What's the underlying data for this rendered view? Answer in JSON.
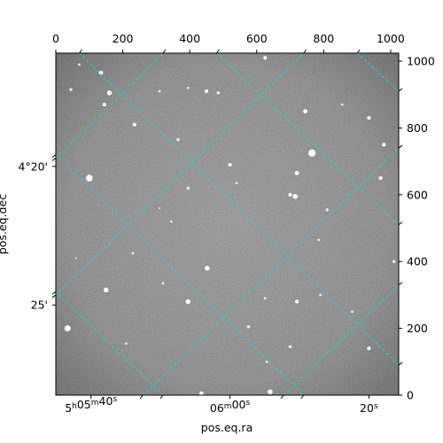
{
  "chart_data": {
    "type": "image",
    "xlabel": "pos.eq.ra",
    "ylabel": "pos.eq.dec",
    "pixel_axes": {
      "xlim": [
        0,
        1024
      ],
      "ylim": [
        0,
        1024
      ],
      "x_ticks": [
        0,
        200,
        400,
        600,
        800,
        1000
      ],
      "y_ticks": [
        0,
        200,
        400,
        600,
        800,
        1000
      ],
      "x_tick_labels": [
        "0",
        "200",
        "400",
        "600",
        "800",
        "1000"
      ],
      "y_tick_labels": [
        "0",
        "200",
        "400",
        "600",
        "800",
        "1000"
      ]
    },
    "world_ticks": {
      "ra": [
        {
          "label": "5h05m40s",
          "x": 105
        },
        {
          "label": "06m00s",
          "x": 520
        },
        {
          "label": "20s",
          "x": 935
        }
      ],
      "dec": [
        {
          "label": "4°20'",
          "y": 685
        },
        {
          "label": "25'",
          "y": 270
        }
      ]
    },
    "grid": true,
    "grid_color": "#22d3d3",
    "grid_lines": [
      {
        "from": [
          70,
          1024
        ],
        "to": [
          1024,
          90
        ]
      },
      {
        "from": [
          0,
          710
        ],
        "to": [
          320,
          1024
        ]
      },
      {
        "from": [
          0,
          300
        ],
        "to": [
          740,
          1024
        ]
      },
      {
        "from": [
          260,
          0
        ],
        "to": [
          1024,
          740
        ]
      },
      {
        "from": [
          680,
          0
        ],
        "to": [
          1024,
          330
        ]
      },
      {
        "from": [
          0,
          310
        ],
        "to": [
          320,
          0
        ]
      },
      {
        "from": [
          0,
          720
        ],
        "to": [
          740,
          0
        ]
      },
      {
        "from": [
          480,
          1024
        ],
        "to": [
          1024,
          510
        ]
      },
      {
        "from": [
          900,
          1024
        ],
        "to": [
          1024,
          910
        ]
      }
    ],
    "stars": [
      {
        "x": 100,
        "y": 650,
        "r": 11
      },
      {
        "x": 160,
        "y": 905,
        "r": 8
      },
      {
        "x": 145,
        "y": 870,
        "r": 6
      },
      {
        "x": 235,
        "y": 810,
        "r": 6
      },
      {
        "x": 150,
        "y": 315,
        "r": 8
      },
      {
        "x": 35,
        "y": 200,
        "r": 10
      },
      {
        "x": 135,
        "y": 965,
        "r": 7
      },
      {
        "x": 45,
        "y": 915,
        "r": 5
      },
      {
        "x": 395,
        "y": 620,
        "r": 5
      },
      {
        "x": 365,
        "y": 765,
        "r": 5
      },
      {
        "x": 450,
        "y": 910,
        "r": 6
      },
      {
        "x": 520,
        "y": 690,
        "r": 6
      },
      {
        "x": 452,
        "y": 380,
        "r": 8
      },
      {
        "x": 395,
        "y": 280,
        "r": 8
      },
      {
        "x": 715,
        "y": 595,
        "r": 8
      },
      {
        "x": 700,
        "y": 600,
        "r": 6
      },
      {
        "x": 765,
        "y": 725,
        "r": 12
      },
      {
        "x": 720,
        "y": 665,
        "r": 7
      },
      {
        "x": 745,
        "y": 850,
        "r": 7
      },
      {
        "x": 810,
        "y": 555,
        "r": 5
      },
      {
        "x": 935,
        "y": 830,
        "r": 6
      },
      {
        "x": 980,
        "y": 750,
        "r": 6
      },
      {
        "x": 970,
        "y": 650,
        "r": 6
      },
      {
        "x": 1010,
        "y": 400,
        "r": 5
      },
      {
        "x": 720,
        "y": 280,
        "r": 6
      },
      {
        "x": 935,
        "y": 140,
        "r": 6
      },
      {
        "x": 700,
        "y": 145,
        "r": 5
      },
      {
        "x": 640,
        "y": 10,
        "r": 8
      },
      {
        "x": 435,
        "y": 5,
        "r": 7
      },
      {
        "x": 625,
        "y": 1010,
        "r": 6
      },
      {
        "x": 485,
        "y": 905,
        "r": 5
      },
      {
        "x": 230,
        "y": 425,
        "r": 4
      },
      {
        "x": 320,
        "y": 335,
        "r": 4
      },
      {
        "x": 625,
        "y": 290,
        "r": 4
      },
      {
        "x": 785,
        "y": 465,
        "r": 4
      },
      {
        "x": 310,
        "y": 910,
        "r": 4
      },
      {
        "x": 70,
        "y": 990,
        "r": 4
      },
      {
        "x": 855,
        "y": 870,
        "r": 4
      },
      {
        "x": 210,
        "y": 155,
        "r": 4
      },
      {
        "x": 575,
        "y": 205,
        "r": 5
      },
      {
        "x": 630,
        "y": 100,
        "r": 4
      },
      {
        "x": 790,
        "y": 300,
        "r": 4
      },
      {
        "x": 345,
        "y": 520,
        "r": 4
      },
      {
        "x": 540,
        "y": 635,
        "r": 4
      },
      {
        "x": 885,
        "y": 250,
        "r": 4
      },
      {
        "x": 310,
        "y": 560,
        "r": 3
      },
      {
        "x": 395,
        "y": 920,
        "r": 4
      },
      {
        "x": 60,
        "y": 410,
        "r": 3
      }
    ]
  }
}
